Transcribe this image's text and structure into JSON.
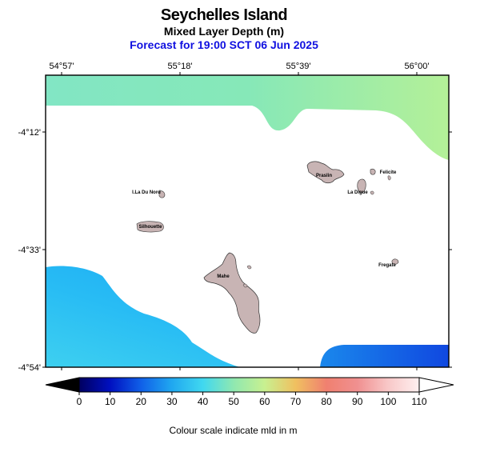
{
  "header": {
    "title": "Seychelles Island",
    "subtitle": "Mixed Layer Depth (m)",
    "forecast": "Forecast for  19:00 SCT 06 Jun 2025"
  },
  "map": {
    "lon_labels": [
      "54°57'",
      "55°18'",
      "55°39'",
      "56°00'"
    ],
    "lat_labels": [
      "-4°12'",
      "-4°33'",
      "-4°54'"
    ],
    "islands": [
      {
        "name": "Praslin",
        "label": "Praslin"
      },
      {
        "name": "Felicite",
        "label": "Felicite"
      },
      {
        "name": "La Digue",
        "label": "La Digue"
      },
      {
        "name": "Ile Du Nord",
        "label": "I.La Du Nord"
      },
      {
        "name": "Silhouette",
        "label": "Silhouette"
      },
      {
        "name": "Mahe",
        "label": "Mahe"
      },
      {
        "name": "Fregate",
        "label": "Fregate"
      }
    ],
    "land_color": "#c8b4b4",
    "background_color": "#ffffff"
  },
  "colorbar": {
    "ticks": [
      "0",
      "10",
      "20",
      "30",
      "40",
      "50",
      "60",
      "70",
      "80",
      "90",
      "100",
      "110"
    ],
    "range": [
      0,
      110
    ],
    "caption": "Colour scale indicate mld in m",
    "stops": [
      {
        "value": 0,
        "color": "#000060"
      },
      {
        "value": 10,
        "color": "#0010c0"
      },
      {
        "value": 20,
        "color": "#1060e8"
      },
      {
        "value": 30,
        "color": "#20a8f0"
      },
      {
        "value": 40,
        "color": "#40d8f0"
      },
      {
        "value": 50,
        "color": "#90e8b0"
      },
      {
        "value": 60,
        "color": "#c8f090"
      },
      {
        "value": 70,
        "color": "#f0c060"
      },
      {
        "value": 80,
        "color": "#f08070"
      },
      {
        "value": 90,
        "color": "#f09090"
      },
      {
        "value": 100,
        "color": "#f8c8c8"
      },
      {
        "value": 110,
        "color": "#fff0f0"
      }
    ]
  }
}
